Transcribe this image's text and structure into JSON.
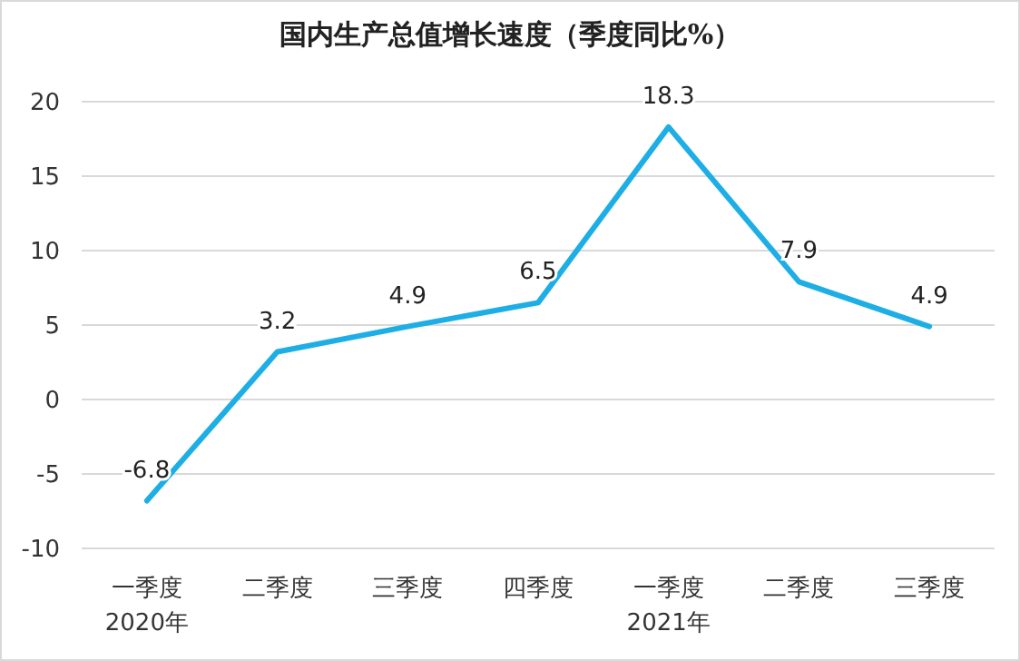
{
  "chart_data": {
    "type": "line",
    "title": "国内生产总值增长速度（季度同比%）",
    "categories": [
      "一季度\n2020年",
      "二季度",
      "三季度",
      "四季度",
      "一季度\n2021年",
      "二季度",
      "三季度"
    ],
    "values": [
      -6.8,
      3.2,
      4.9,
      6.5,
      18.3,
      7.9,
      4.9
    ],
    "color": "#1eaee6",
    "ylim": [
      -10,
      20
    ],
    "yticks": [
      -10,
      -5,
      0,
      5,
      10,
      15,
      20
    ],
    "grid": "y",
    "data_labels": true,
    "marker": "none",
    "line_style": "solid"
  }
}
